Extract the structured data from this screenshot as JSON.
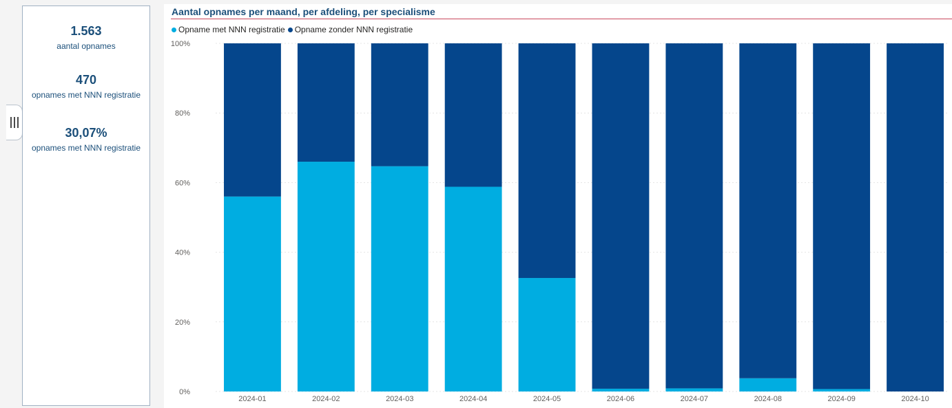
{
  "kpis": [
    {
      "value": "1.563",
      "label": "aantal opnames"
    },
    {
      "value": "470",
      "label": "opnames met NNN registratie"
    },
    {
      "value": "30,07%",
      "label": "opnames met NNN registratie"
    }
  ],
  "colors": {
    "kpi_value": "#1b4f7a",
    "title": "#1b4f7a",
    "title_rule": "#c9465b",
    "series_met": "#00ade1",
    "series_zonder": "#05468c",
    "axis_text": "#605e5c",
    "grid": "#e4e4e4"
  },
  "chart_data": {
    "type": "bar",
    "stacked": "percent",
    "title": "Aantal opnames per maand, per afdeling, per specialisme",
    "legend_position": "top-left",
    "grid": true,
    "categories": [
      "2024-01",
      "2024-02",
      "2024-03",
      "2024-04",
      "2024-05",
      "2024-06",
      "2024-07",
      "2024-08",
      "2024-09",
      "2024-10"
    ],
    "y_ticks": [
      "0%",
      "20%",
      "40%",
      "60%",
      "80%",
      "100%"
    ],
    "ylim": [
      0,
      100
    ],
    "series": [
      {
        "name": "Opname met NNN registratie",
        "values": [
          56,
          66,
          64.7,
          58.8,
          32.6,
          0.8,
          0.9,
          3.8,
          0.7,
          0
        ]
      },
      {
        "name": "Opname zonder NNN registratie",
        "values": [
          44,
          34,
          35.3,
          41.2,
          67.4,
          99.2,
          99.1,
          96.2,
          99.3,
          100
        ]
      }
    ]
  }
}
